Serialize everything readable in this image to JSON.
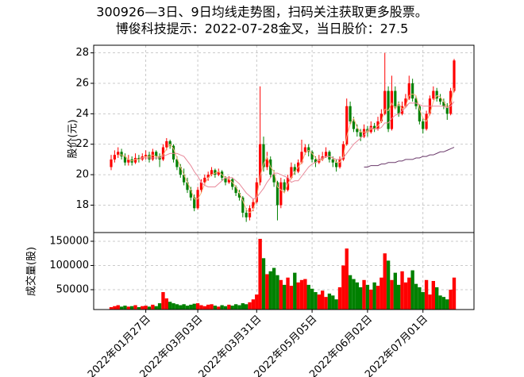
{
  "chart_data": {
    "type": "candlestick",
    "title": "300926—3日、9日均线走势图，扫码关注获取更多股票。",
    "subtitle": "博俊科技提示：2022-07-28金叉，当日股价：27.5",
    "ylabel": "股价(元)",
    "volume_ylabel": "成交量(股)",
    "up_color": "#ff0000",
    "down_color": "#008000",
    "grid": true,
    "ylim": [
      16.2,
      28.5
    ],
    "yticks": [
      18,
      20,
      22,
      24,
      26,
      28
    ],
    "volume_ylim": [
      9000,
      168000
    ],
    "volume_yticks": [
      50000,
      100000,
      150000
    ],
    "categories": [
      null,
      null,
      null,
      null,
      null,
      null,
      null,
      null,
      null,
      null,
      "2022年01月27日",
      null,
      null,
      null,
      null,
      null,
      null,
      null,
      null,
      null,
      null,
      null,
      null,
      null,
      null,
      "2022年03月03日",
      null,
      null,
      null,
      null,
      null,
      null,
      null,
      null,
      null,
      null,
      null,
      null,
      null,
      null,
      null,
      null,
      "2022年03月31日",
      null,
      null,
      null,
      null,
      null,
      null,
      null,
      null,
      null,
      null,
      null,
      null,
      null,
      null,
      null,
      "2022年05月05日",
      null,
      null,
      null,
      null,
      null,
      null,
      null,
      null,
      null,
      null,
      null,
      null,
      null,
      null,
      null,
      "2022年06月02日",
      null,
      null,
      null,
      null,
      null,
      null,
      null,
      null,
      null,
      null,
      null,
      null,
      null,
      null,
      null,
      "2022年07月01日",
      null,
      null,
      null,
      null,
      null,
      null,
      null,
      null,
      null
    ],
    "ohlc": [
      [
        20.5,
        21.3,
        20.3,
        21.0
      ],
      [
        21.0,
        21.6,
        20.8,
        21.3
      ],
      [
        21.3,
        21.8,
        21.1,
        21.5
      ],
      [
        21.5,
        21.7,
        21.0,
        21.2
      ],
      [
        21.2,
        21.4,
        20.6,
        20.8
      ],
      [
        20.8,
        21.3,
        20.6,
        21.0
      ],
      [
        21.0,
        21.2,
        20.6,
        20.8
      ],
      [
        20.8,
        21.4,
        20.7,
        21.1
      ],
      [
        21.1,
        21.3,
        20.8,
        21.0
      ],
      [
        21.0,
        21.4,
        20.9,
        21.2
      ],
      [
        21.2,
        21.6,
        21.0,
        21.3
      ],
      [
        21.3,
        21.5,
        20.8,
        21.0
      ],
      [
        21.0,
        21.7,
        20.9,
        21.5
      ],
      [
        21.5,
        21.6,
        21.0,
        21.2
      ],
      [
        21.2,
        21.4,
        20.5,
        21.0
      ],
      [
        21.0,
        22.0,
        20.9,
        21.8
      ],
      [
        21.8,
        22.4,
        21.6,
        22.2
      ],
      [
        22.2,
        22.3,
        21.7,
        21.9
      ],
      [
        21.9,
        22.0,
        20.8,
        21.0
      ],
      [
        21.0,
        21.2,
        20.3,
        20.5
      ],
      [
        20.5,
        20.7,
        19.8,
        20.0
      ],
      [
        20.0,
        20.4,
        19.3,
        19.5
      ],
      [
        19.5,
        19.8,
        18.8,
        19.0
      ],
      [
        19.0,
        19.2,
        18.3,
        18.5
      ],
      [
        18.5,
        18.7,
        17.6,
        17.8
      ],
      [
        17.8,
        19.2,
        17.7,
        19.0
      ],
      [
        19.0,
        19.7,
        18.8,
        19.5
      ],
      [
        19.5,
        20.0,
        19.3,
        19.8
      ],
      [
        19.8,
        20.2,
        19.6,
        20.0
      ],
      [
        20.0,
        20.5,
        19.9,
        20.3
      ],
      [
        20.3,
        20.4,
        19.8,
        20.0
      ],
      [
        20.0,
        20.4,
        19.9,
        20.2
      ],
      [
        20.2,
        20.3,
        19.6,
        19.8
      ],
      [
        19.8,
        19.9,
        19.3,
        19.5
      ],
      [
        19.5,
        19.9,
        19.4,
        19.7
      ],
      [
        19.7,
        19.8,
        19.0,
        19.2
      ],
      [
        19.2,
        19.3,
        18.6,
        18.8
      ],
      [
        18.8,
        19.0,
        18.3,
        18.5
      ],
      [
        18.5,
        18.6,
        17.2,
        17.5
      ],
      [
        17.5,
        17.8,
        16.9,
        17.2
      ],
      [
        17.2,
        18.0,
        17.0,
        17.8
      ],
      [
        17.8,
        18.4,
        17.6,
        18.2
      ],
      [
        18.2,
        19.8,
        18.1,
        19.5
      ],
      [
        19.5,
        25.8,
        19.3,
        22.0
      ],
      [
        22.0,
        22.5,
        20.2,
        20.5
      ],
      [
        20.5,
        21.5,
        20.3,
        21.0
      ],
      [
        21.0,
        21.2,
        19.8,
        20.0
      ],
      [
        20.0,
        20.3,
        19.2,
        19.5
      ],
      [
        19.5,
        19.6,
        17.0,
        18.0
      ],
      [
        18.0,
        19.8,
        17.8,
        19.5
      ],
      [
        19.5,
        19.7,
        18.8,
        19.0
      ],
      [
        19.0,
        20.0,
        18.9,
        19.8
      ],
      [
        19.8,
        20.8,
        19.7,
        20.5
      ],
      [
        20.5,
        20.7,
        20.0,
        20.2
      ],
      [
        20.2,
        21.0,
        20.1,
        20.8
      ],
      [
        20.8,
        22.3,
        20.7,
        21.5
      ],
      [
        21.5,
        22.0,
        21.3,
        21.8
      ],
      [
        21.8,
        22.0,
        21.2,
        21.5
      ],
      [
        21.5,
        21.6,
        20.8,
        21.0
      ],
      [
        21.0,
        21.2,
        20.5,
        20.8
      ],
      [
        20.8,
        21.3,
        20.7,
        21.0
      ],
      [
        21.0,
        21.5,
        20.9,
        21.2
      ],
      [
        21.2,
        21.8,
        21.1,
        21.5
      ],
      [
        21.5,
        21.6,
        20.8,
        21.0
      ],
      [
        21.0,
        21.2,
        20.5,
        20.8
      ],
      [
        20.8,
        21.0,
        20.2,
        20.5
      ],
      [
        20.5,
        21.2,
        20.4,
        21.0
      ],
      [
        21.0,
        22.2,
        20.9,
        22.0
      ],
      [
        22.0,
        25.0,
        21.9,
        24.5
      ],
      [
        24.5,
        24.8,
        23.3,
        23.5
      ],
      [
        23.5,
        23.8,
        22.8,
        23.0
      ],
      [
        23.0,
        23.3,
        22.5,
        22.8
      ],
      [
        22.8,
        23.0,
        22.2,
        22.5
      ],
      [
        22.5,
        23.3,
        22.4,
        23.0
      ],
      [
        23.0,
        23.2,
        22.5,
        22.8
      ],
      [
        22.8,
        23.5,
        22.7,
        23.2
      ],
      [
        23.2,
        23.4,
        22.8,
        23.0
      ],
      [
        23.0,
        23.8,
        22.9,
        23.5
      ],
      [
        23.5,
        24.3,
        23.4,
        24.0
      ],
      [
        24.0,
        28.0,
        23.9,
        25.5
      ],
      [
        25.5,
        25.8,
        22.8,
        23.0
      ],
      [
        23.0,
        26.5,
        22.9,
        25.5
      ],
      [
        25.5,
        25.8,
        24.3,
        24.5
      ],
      [
        24.5,
        24.8,
        23.8,
        24.0
      ],
      [
        24.0,
        24.8,
        23.9,
        24.5
      ],
      [
        24.5,
        25.3,
        24.4,
        25.0
      ],
      [
        25.0,
        26.5,
        24.9,
        26.0
      ],
      [
        26.0,
        26.3,
        24.8,
        25.0
      ],
      [
        25.0,
        25.2,
        24.3,
        24.5
      ],
      [
        24.5,
        24.6,
        23.3,
        23.5
      ],
      [
        23.5,
        23.7,
        22.7,
        23.0
      ],
      [
        23.0,
        24.2,
        22.9,
        24.0
      ],
      [
        24.0,
        25.2,
        23.9,
        25.0
      ],
      [
        25.0,
        25.8,
        24.9,
        25.5
      ],
      [
        25.5,
        25.7,
        24.8,
        25.0
      ],
      [
        25.0,
        25.3,
        24.6,
        24.8
      ],
      [
        24.8,
        25.0,
        24.3,
        24.5
      ],
      [
        24.5,
        24.7,
        23.6,
        24.0
      ],
      [
        24.0,
        25.7,
        23.9,
        25.5
      ],
      [
        25.5,
        27.6,
        25.4,
        27.5
      ]
    ],
    "volume": [
      14000,
      16000,
      18000,
      15000,
      17000,
      15000,
      16000,
      18000,
      14000,
      16000,
      17000,
      15000,
      19000,
      16000,
      22000,
      45000,
      32000,
      25000,
      22000,
      20000,
      18000,
      20000,
      17000,
      19000,
      21000,
      22000,
      18000,
      16000,
      19000,
      20000,
      17000,
      15000,
      18000,
      16000,
      19000,
      17000,
      20000,
      18000,
      22000,
      20000,
      24000,
      30000,
      40000,
      155000,
      115000,
      82000,
      88000,
      95000,
      80000,
      70000,
      60000,
      75000,
      58000,
      85000,
      65000,
      70000,
      72000,
      60000,
      52000,
      45000,
      40000,
      48000,
      35000,
      42000,
      38000,
      30000,
      55000,
      100000,
      135000,
      80000,
      72000,
      65000,
      55000,
      70000,
      60000,
      50000,
      65000,
      58000,
      75000,
      125000,
      110000,
      70000,
      85000,
      60000,
      88000,
      65000,
      75000,
      90000,
      62000,
      55000,
      45000,
      70000,
      40000,
      68000,
      55000,
      38000,
      35000,
      30000,
      50000,
      75000
    ],
    "lines": [
      {
        "color": "#f5b07a",
        "values": [
          null,
          null,
          21.3,
          21.3,
          21.2,
          21.0,
          20.9,
          21.0,
          21.0,
          21.1,
          21.2,
          21.2,
          21.3,
          21.2,
          21.2,
          21.3,
          21.7,
          22.0,
          21.7,
          21.1,
          20.5,
          20.0,
          19.5,
          19.0,
          18.4,
          18.4,
          18.8,
          19.4,
          19.8,
          20.0,
          20.1,
          20.2,
          20.0,
          19.8,
          19.7,
          19.5,
          19.2,
          18.8,
          18.3,
          17.7,
          17.5,
          17.7,
          18.5,
          19.9,
          20.7,
          21.2,
          20.5,
          20.2,
          19.2,
          19.0,
          18.8,
          19.4,
          19.8,
          20.2,
          20.5,
          20.8,
          21.4,
          21.6,
          21.4,
          21.1,
          20.9,
          21.0,
          21.2,
          21.2,
          21.1,
          20.8,
          20.8,
          21.2,
          22.5,
          23.3,
          23.7,
          23.1,
          22.8,
          22.8,
          22.8,
          23.0,
          23.0,
          23.2,
          23.5,
          24.3,
          24.2,
          24.7,
          24.3,
          24.7,
          24.3,
          24.5,
          25.2,
          25.3,
          25.2,
          24.3,
          23.7,
          23.5,
          24.0,
          24.8,
          25.2,
          25.1,
          24.8,
          24.4,
          24.7,
          25.7
        ]
      },
      {
        "color": "#e8899a",
        "values": [
          null,
          null,
          null,
          null,
          null,
          null,
          null,
          null,
          21.1,
          21.1,
          21.1,
          21.1,
          21.1,
          21.1,
          21.1,
          21.2,
          21.3,
          21.4,
          21.4,
          21.4,
          21.3,
          21.2,
          20.9,
          20.6,
          20.2,
          19.9,
          19.5,
          19.3,
          19.2,
          19.2,
          19.2,
          19.4,
          19.6,
          19.8,
          19.8,
          19.8,
          19.6,
          19.4,
          19.1,
          18.8,
          18.6,
          18.4,
          18.5,
          18.8,
          19.1,
          19.5,
          19.8,
          20.1,
          20.1,
          20.0,
          19.9,
          19.8,
          19.5,
          19.6,
          19.6,
          19.9,
          20.2,
          20.5,
          20.7,
          20.8,
          21.0,
          21.1,
          21.2,
          21.2,
          21.1,
          21.0,
          21.0,
          21.1,
          21.4,
          21.7,
          22.0,
          22.2,
          22.4,
          22.6,
          22.9,
          23.1,
          23.0,
          23.0,
          23.1,
          23.4,
          23.4,
          23.7,
          23.9,
          24.0,
          24.2,
          24.4,
          24.7,
          24.7,
          24.7,
          24.6,
          24.5,
          24.5,
          24.5,
          24.5,
          24.5,
          24.5,
          24.5,
          24.4,
          24.5,
          24.8
        ]
      },
      {
        "color": "#6b3a6b",
        "values": [
          null,
          null,
          null,
          null,
          null,
          null,
          null,
          null,
          null,
          null,
          null,
          null,
          null,
          null,
          null,
          null,
          null,
          null,
          null,
          null,
          null,
          null,
          null,
          null,
          null,
          null,
          null,
          null,
          null,
          null,
          null,
          null,
          null,
          null,
          null,
          null,
          null,
          null,
          null,
          null,
          null,
          null,
          null,
          null,
          null,
          null,
          null,
          null,
          null,
          null,
          null,
          null,
          null,
          null,
          null,
          null,
          null,
          null,
          null,
          null,
          null,
          null,
          null,
          null,
          null,
          null,
          null,
          null,
          null,
          null,
          null,
          null,
          null,
          20.5,
          20.5,
          20.6,
          20.6,
          20.6,
          20.7,
          20.7,
          20.8,
          20.8,
          20.8,
          20.9,
          20.9,
          21.0,
          21.0,
          21.0,
          21.1,
          21.1,
          21.2,
          21.2,
          21.3,
          21.3,
          21.4,
          21.5,
          21.5,
          21.6,
          21.7,
          21.8
        ]
      }
    ]
  }
}
